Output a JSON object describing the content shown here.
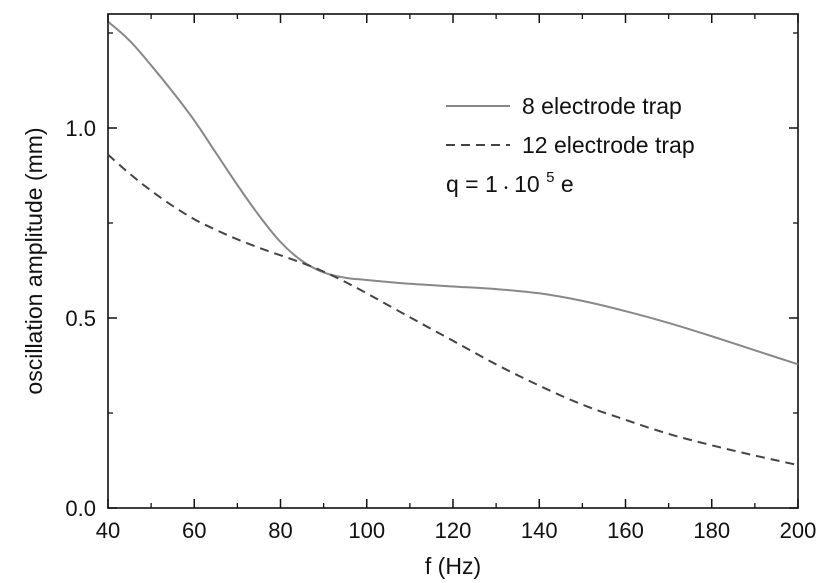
{
  "chart_data": {
    "type": "line",
    "xlabel": "f (Hz)",
    "ylabel": "oscillation amplitude (mm)",
    "xlim": [
      40,
      200
    ],
    "ylim": [
      0.0,
      1.3
    ],
    "x_ticks": [
      40,
      60,
      80,
      100,
      120,
      140,
      160,
      180,
      200
    ],
    "x_tick_labels": [
      "40",
      "60",
      "80",
      "100",
      "120",
      "140",
      "160",
      "180",
      "200"
    ],
    "y_ticks": [
      0.0,
      0.5,
      1.0
    ],
    "y_tick_labels": [
      "0.0",
      "0.5",
      "1.0"
    ],
    "grid": false,
    "legend_position": "top-right",
    "annotation": {
      "prefix": "q = 1",
      "dot": "•",
      "base": "10",
      "exponent": "5",
      "suffix": " e"
    },
    "series": [
      {
        "name": "8 electrode trap",
        "style": "solid",
        "color": "#888888",
        "x": [
          40,
          45,
          50,
          55,
          60,
          65,
          70,
          75,
          80,
          85,
          90,
          95,
          100,
          110,
          120,
          130,
          140,
          150,
          160,
          170,
          180,
          190,
          200
        ],
        "y": [
          1.28,
          1.23,
          1.165,
          1.095,
          1.02,
          0.935,
          0.85,
          0.77,
          0.7,
          0.65,
          0.62,
          0.606,
          0.6,
          0.59,
          0.583,
          0.576,
          0.565,
          0.545,
          0.518,
          0.487,
          0.452,
          0.415,
          0.378
        ]
      },
      {
        "name": "12 electrode trap",
        "style": "dashed",
        "color": "#444444",
        "x": [
          40,
          45,
          50,
          55,
          60,
          65,
          70,
          75,
          80,
          85,
          90,
          95,
          100,
          110,
          120,
          130,
          140,
          150,
          160,
          170,
          180,
          190,
          200
        ],
        "y": [
          0.93,
          0.88,
          0.835,
          0.795,
          0.76,
          0.732,
          0.707,
          0.685,
          0.665,
          0.645,
          0.622,
          0.595,
          0.565,
          0.502,
          0.44,
          0.378,
          0.322,
          0.272,
          0.232,
          0.195,
          0.165,
          0.138,
          0.113
        ]
      }
    ]
  }
}
